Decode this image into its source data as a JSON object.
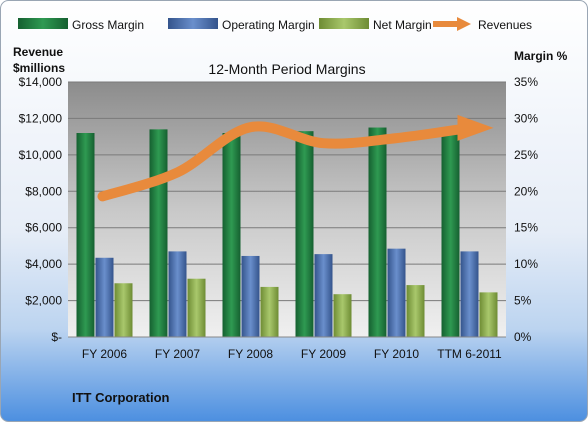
{
  "chart_data": {
    "type": "bar",
    "title": "12-Month Period Margins",
    "company": "ITT Corporation",
    "left_axis_title": [
      "Revenue",
      "$millions"
    ],
    "right_axis_title": "Margin %",
    "categories": [
      "FY 2006",
      "FY 2007",
      "FY 2008",
      "FY 2009",
      "FY 2010",
      "TTM 6-2011"
    ],
    "left_ticks": [
      "$-",
      "$2,000",
      "$4,000",
      "$6,000",
      "$8,000",
      "$10,000",
      "$12,000",
      "$14,000"
    ],
    "right_ticks": [
      "0%",
      "5%",
      "10%",
      "15%",
      "20%",
      "25%",
      "30%",
      "35%"
    ],
    "ylim": [
      0,
      14000
    ],
    "y2lim": [
      0,
      35
    ],
    "series": [
      {
        "name": "Gross Margin",
        "axis": "left",
        "color": "#1f7a3e",
        "values": [
          11200,
          11400,
          11200,
          11300,
          11500,
          11450
        ]
      },
      {
        "name": "Operating Margin",
        "axis": "left",
        "color": "#4a6fb0",
        "values": [
          4350,
          4700,
          4450,
          4550,
          4850,
          4700
        ]
      },
      {
        "name": "Net Margin",
        "axis": "left",
        "color": "#8fb050",
        "values": [
          2950,
          3200,
          2750,
          2350,
          2850,
          2450
        ]
      },
      {
        "name": "Revenues",
        "axis": "right",
        "type": "line",
        "color": "#e88a3c",
        "values": [
          19.3,
          22.6,
          28.8,
          26.6,
          27.3,
          28.7
        ]
      }
    ],
    "legend_position": "top"
  }
}
